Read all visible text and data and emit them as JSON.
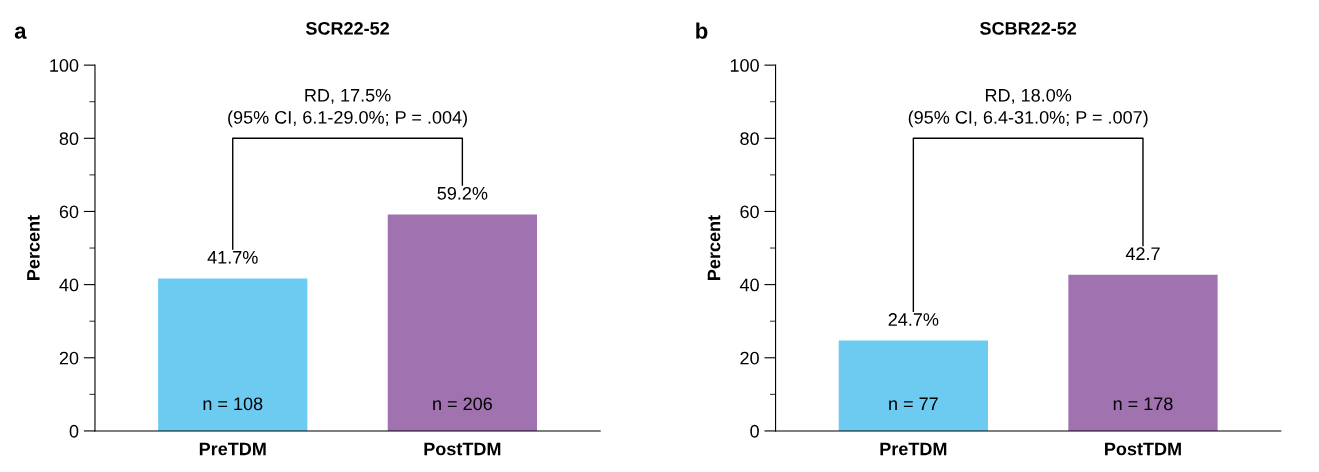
{
  "chart_data": [
    {
      "type": "bar",
      "title": "SCR22-52",
      "ylabel": "Percent",
      "categories": [
        "PreTDM",
        "PostTDM"
      ],
      "values": [
        41.7,
        59.2
      ],
      "colors": [
        "#6dcbf1",
        "#a072b0"
      ],
      "value_labels": [
        "41.7%",
        "59.2%"
      ],
      "ylim": [
        0,
        100
      ],
      "yticks": [
        0,
        {
          "value": 10,
          "label": null
        },
        20,
        {
          "value": 30,
          "label": null
        },
        40,
        {
          "value": 50,
          "label": null
        },
        60,
        {
          "value": 70,
          "label": null
        },
        80,
        {
          "value": 90,
          "label": null
        },
        100
      ],
      "grid": false,
      "legend": false,
      "annotations": [
        "a",
        "RD, 17.5%\n(95% CI, 6.1-29.0%; P = .004)",
        "n = 108",
        "n = 206"
      ]
    },
    {
      "type": "bar",
      "title": "SCBR22-52",
      "ylabel": "Percent",
      "categories": [
        "PreTDM",
        "PostTDM"
      ],
      "values": [
        24.7,
        42.7
      ],
      "colors": [
        "#6dcbf1",
        "#a072b0"
      ],
      "value_labels": [
        "24.7%",
        "42.7"
      ],
      "ylim": [
        0,
        100
      ],
      "yticks": [
        0,
        {
          "value": 10,
          "label": null
        },
        20,
        {
          "value": 30,
          "label": null
        },
        40,
        {
          "value": 50,
          "label": null
        },
        60,
        {
          "value": 70,
          "label": null
        },
        80,
        {
          "value": 90,
          "label": null
        },
        100
      ],
      "grid": false,
      "legend": false,
      "annotations": [
        "b",
        "RD, 18.0%\n(95% CI, 6.4-31.0%; P = .007)",
        "n = 77",
        "n = 178"
      ]
    }
  ]
}
